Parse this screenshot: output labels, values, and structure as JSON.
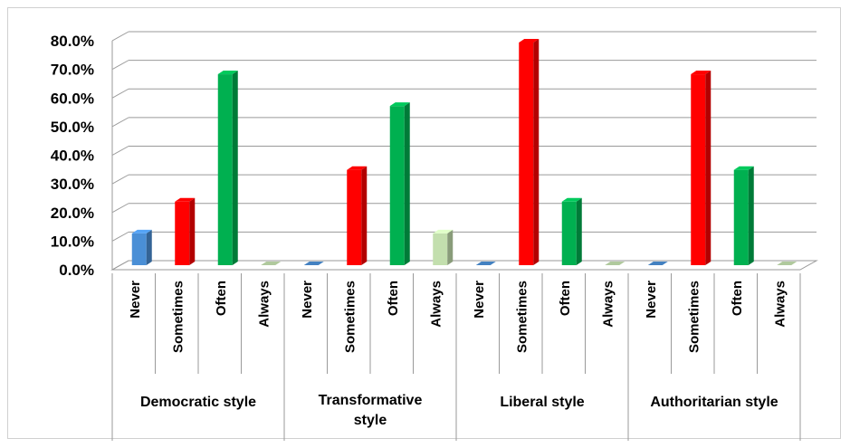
{
  "chart_data": {
    "type": "bar",
    "ylim": [
      0,
      80
    ],
    "y_ticks": [
      "0.0%",
      "10.0%",
      "20.0%",
      "30.0%",
      "40.0%",
      "50.0%",
      "60.0%",
      "70.0%",
      "80.0%"
    ],
    "grid": true,
    "legend": "none",
    "title": "",
    "xlabel": "",
    "ylabel": "",
    "groups": [
      {
        "label_lines": [
          "Democratic style"
        ],
        "categories": [
          "Never",
          "Sometimes",
          "Often",
          "Always"
        ],
        "values": [
          11.1,
          22.2,
          66.7,
          0.0
        ]
      },
      {
        "label_lines": [
          "Transformative",
          "style"
        ],
        "categories": [
          "Never",
          "Sometimes",
          "Often",
          "Always"
        ],
        "values": [
          0.0,
          33.3,
          55.6,
          11.1
        ]
      },
      {
        "label_lines": [
          "Liberal style"
        ],
        "categories": [
          "Never",
          "Sometimes",
          "Often",
          "Always"
        ],
        "values": [
          0.0,
          77.8,
          22.2,
          0.0
        ]
      },
      {
        "label_lines": [
          "Authoritarian style"
        ],
        "categories": [
          "Never",
          "Sometimes",
          "Often",
          "Always"
        ],
        "values": [
          0.0,
          66.7,
          33.3,
          0.0
        ]
      }
    ],
    "category_colors": {
      "Never": "#4a8fd6",
      "Sometimes": "#ff0000",
      "Often": "#00b050",
      "Always": "#c3dfae"
    }
  }
}
